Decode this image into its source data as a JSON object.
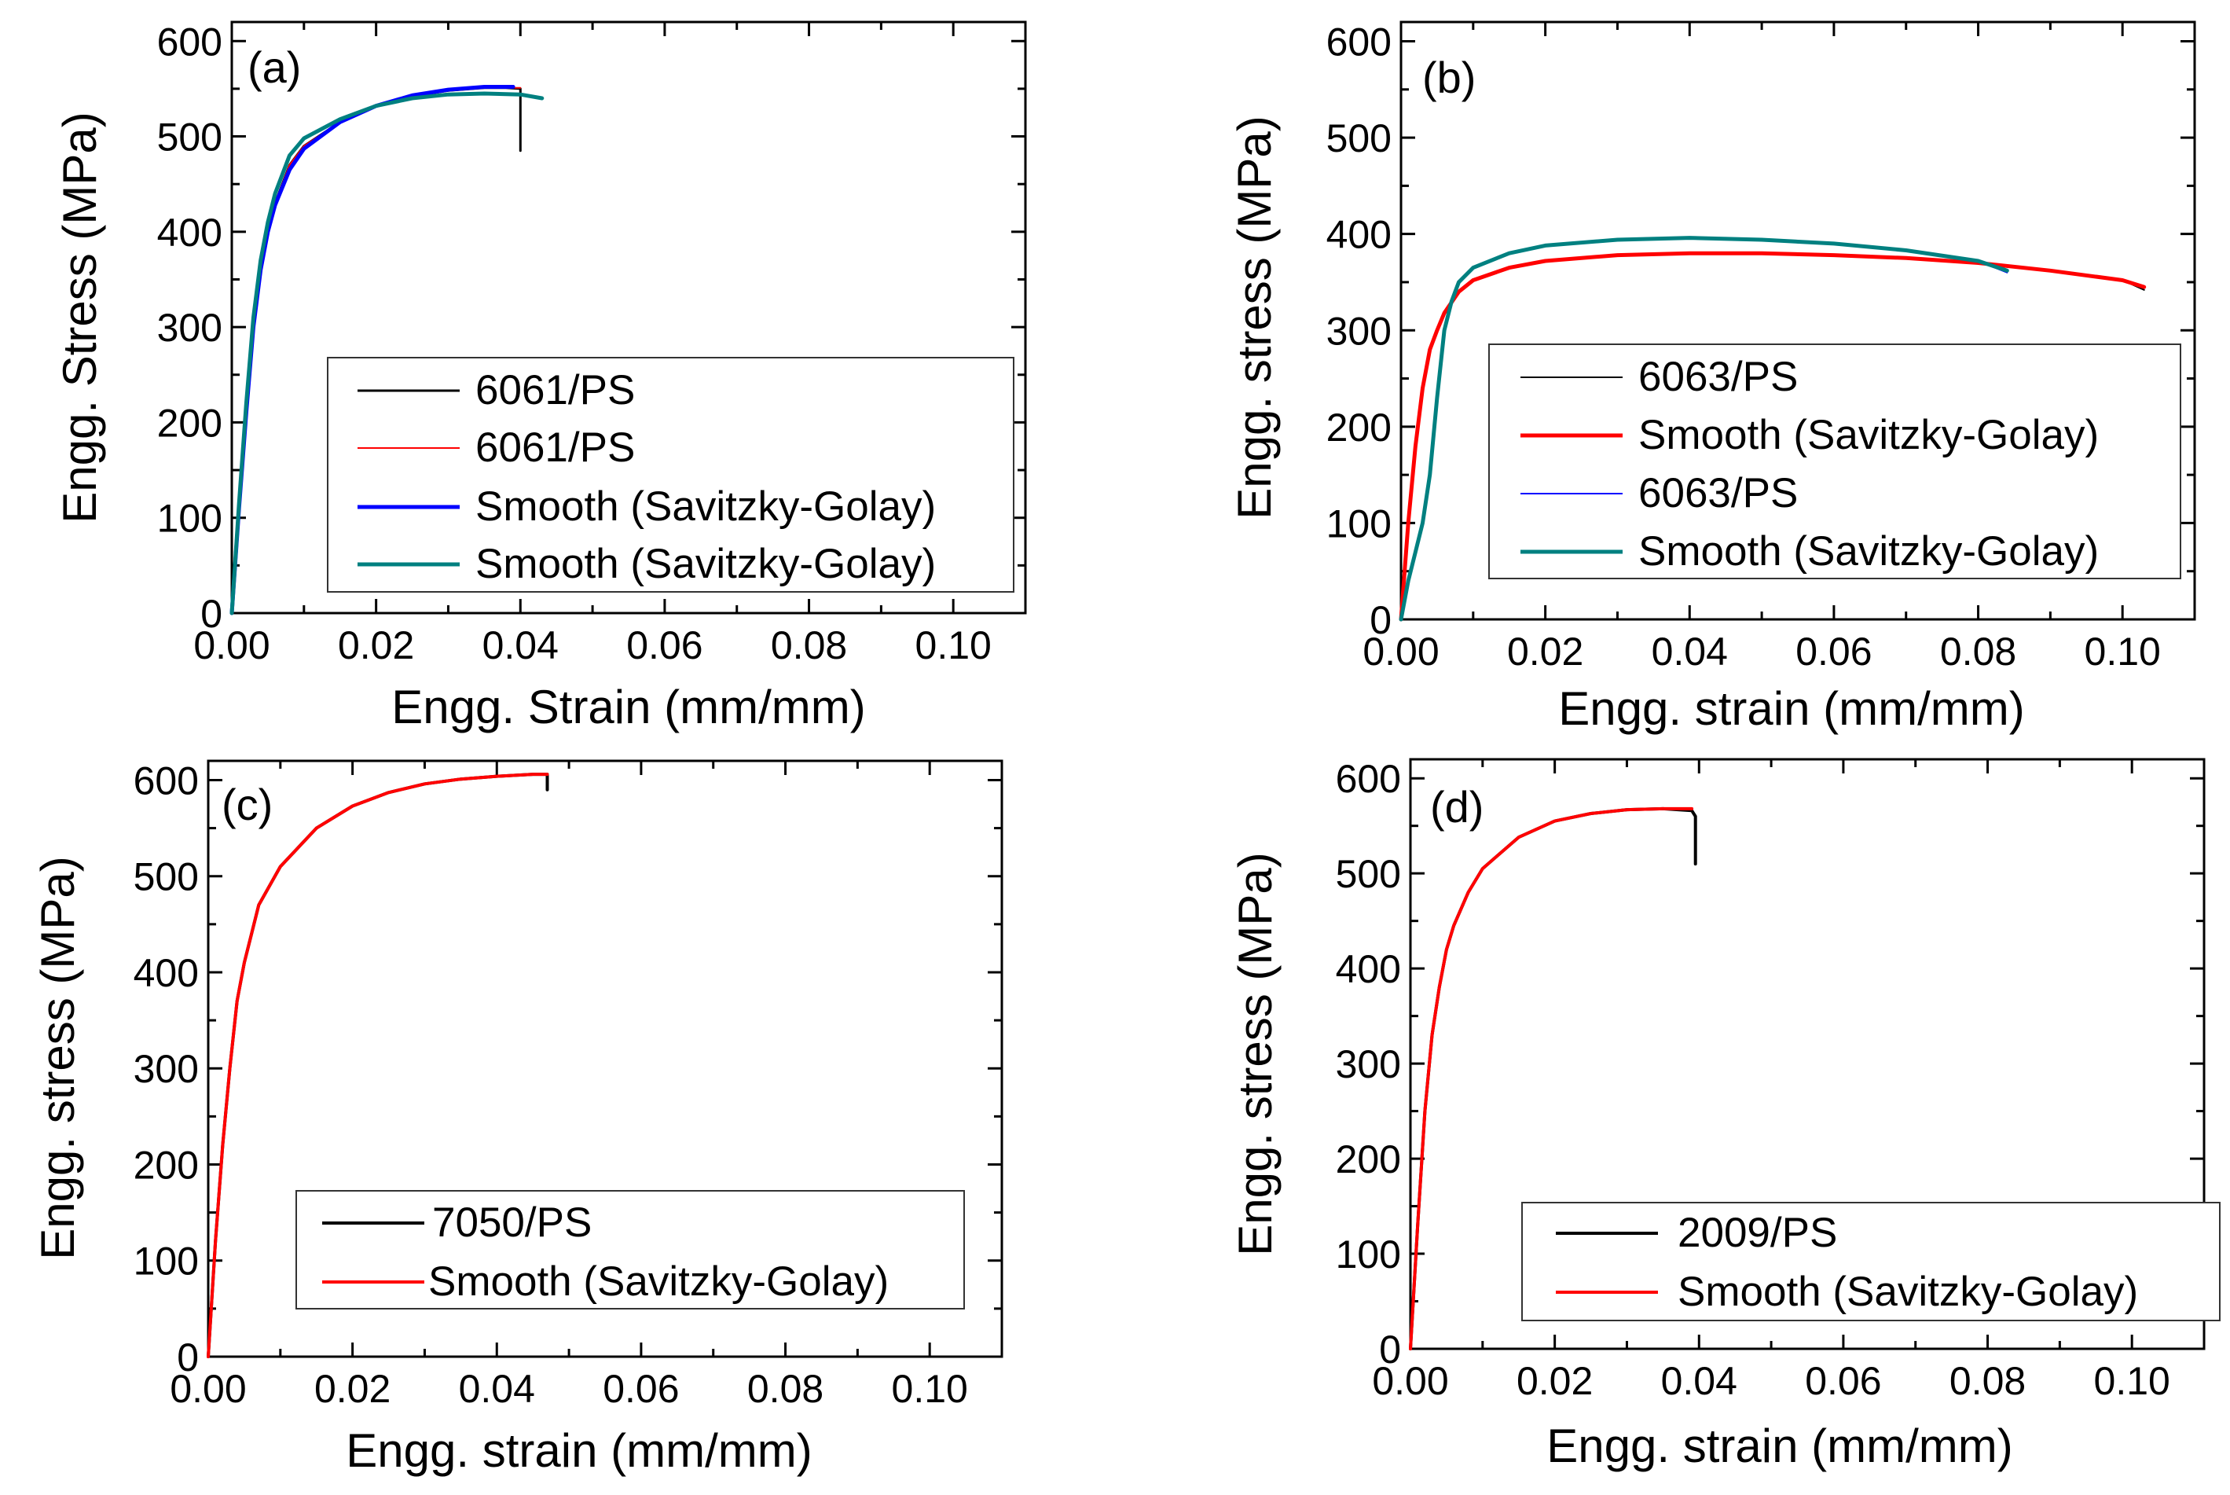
{
  "colors": {
    "black": "#000000",
    "red": "#ff0000",
    "blue": "#0000ff",
    "teal": "#008080"
  },
  "chart_data": [
    {
      "type": "line",
      "panel_label": "(a)",
      "xlabel": "Engg. Strain (mm/mm)",
      "ylabel": "Engg. Stress (MPa)",
      "xlim": [
        0,
        0.11
      ],
      "ylim": [
        0,
        620
      ],
      "xticks": [
        0,
        0.02,
        0.04,
        0.06,
        0.08,
        0.1
      ],
      "xtick_labels": [
        "0.00",
        "0.02",
        "0.04",
        "0.06",
        "0.08",
        "0.10"
      ],
      "yticks": [
        0,
        100,
        200,
        300,
        400,
        500,
        600
      ],
      "ytick_labels": [
        "0",
        "100",
        "200",
        "300",
        "400",
        "500",
        "600"
      ],
      "legend_position": "lower-right",
      "series": [
        {
          "name": "6061/PS",
          "color": "#000000",
          "width": 3,
          "x": [
            0,
            0.001,
            0.002,
            0.003,
            0.004,
            0.005,
            0.006,
            0.008,
            0.01,
            0.015,
            0.02,
            0.025,
            0.03,
            0.035,
            0.038,
            0.04,
            0.04
          ],
          "y": [
            0,
            110,
            210,
            300,
            360,
            400,
            430,
            470,
            490,
            515,
            532,
            542,
            548,
            551,
            551,
            550,
            485
          ]
        },
        {
          "name": "6061/PS",
          "color": "#ff0000",
          "width": 2,
          "x": [
            0,
            0.001,
            0.002,
            0.003,
            0.004,
            0.005,
            0.006,
            0.008,
            0.01,
            0.015,
            0.02,
            0.025,
            0.03,
            0.035,
            0.04
          ],
          "y": [
            0,
            110,
            210,
            300,
            360,
            400,
            430,
            470,
            490,
            515,
            532,
            542,
            548,
            551,
            551
          ]
        },
        {
          "name": "Smooth (Savitzky-Golay)",
          "color": "#0000ff",
          "width": 5,
          "x": [
            0,
            0.001,
            0.002,
            0.003,
            0.004,
            0.005,
            0.006,
            0.008,
            0.01,
            0.015,
            0.02,
            0.025,
            0.03,
            0.035,
            0.039
          ],
          "y": [
            0,
            110,
            210,
            300,
            360,
            400,
            428,
            465,
            487,
            515,
            532,
            543,
            549,
            552,
            552
          ]
        },
        {
          "name": "Smooth (Savitzky-Golay)",
          "color": "#008080",
          "width": 5,
          "x": [
            0,
            0.001,
            0.002,
            0.003,
            0.004,
            0.005,
            0.006,
            0.008,
            0.01,
            0.015,
            0.02,
            0.025,
            0.03,
            0.035,
            0.04,
            0.043
          ],
          "y": [
            0,
            115,
            220,
            310,
            370,
            410,
            440,
            480,
            498,
            518,
            532,
            540,
            544,
            545,
            544,
            540
          ]
        }
      ]
    },
    {
      "type": "line",
      "panel_label": "(b)",
      "xlabel": "Engg. strain (mm/mm)",
      "ylabel": "Engg. stress (MPa)",
      "xlim": [
        0,
        0.11
      ],
      "ylim": [
        0,
        620
      ],
      "xticks": [
        0,
        0.02,
        0.04,
        0.06,
        0.08,
        0.1
      ],
      "xtick_labels": [
        "0.00",
        "0.02",
        "0.04",
        "0.06",
        "0.08",
        "0.10"
      ],
      "yticks": [
        0,
        100,
        200,
        300,
        400,
        500,
        600
      ],
      "ytick_labels": [
        "0",
        "100",
        "200",
        "300",
        "400",
        "500",
        "600"
      ],
      "legend_position": "lower-right",
      "series": [
        {
          "name": "6063/PS",
          "color": "#000000",
          "width": 2,
          "x": [
            0,
            0.001,
            0.002,
            0.003,
            0.004,
            0.005,
            0.006,
            0.008,
            0.01,
            0.015,
            0.02,
            0.03,
            0.04,
            0.05,
            0.06,
            0.07,
            0.08,
            0.09,
            0.1,
            0.103
          ],
          "y": [
            0,
            100,
            180,
            240,
            280,
            300,
            318,
            340,
            352,
            365,
            372,
            378,
            380,
            380,
            378,
            375,
            370,
            362,
            352,
            342
          ]
        },
        {
          "name": "Smooth (Savitzky-Golay)",
          "color": "#ff0000",
          "width": 5,
          "x": [
            0,
            0.001,
            0.002,
            0.003,
            0.004,
            0.005,
            0.006,
            0.008,
            0.01,
            0.015,
            0.02,
            0.03,
            0.04,
            0.05,
            0.06,
            0.07,
            0.08,
            0.09,
            0.1,
            0.103
          ],
          "y": [
            0,
            100,
            180,
            240,
            280,
            300,
            318,
            340,
            352,
            365,
            372,
            378,
            380,
            380,
            378,
            375,
            370,
            362,
            352,
            345
          ]
        },
        {
          "name": "6063/PS",
          "color": "#0000ff",
          "width": 2,
          "x": [
            0,
            0.001,
            0.002,
            0.003,
            0.004,
            0.005,
            0.006,
            0.007,
            0.008,
            0.01,
            0.015,
            0.02,
            0.03,
            0.04,
            0.05,
            0.06,
            0.07,
            0.08,
            0.084
          ],
          "y": [
            0,
            40,
            70,
            100,
            150,
            230,
            300,
            330,
            350,
            365,
            380,
            388,
            394,
            396,
            394,
            390,
            383,
            372,
            360
          ]
        },
        {
          "name": "Smooth (Savitzky-Golay)",
          "color": "#008080",
          "width": 5,
          "x": [
            0,
            0.001,
            0.002,
            0.003,
            0.004,
            0.005,
            0.006,
            0.007,
            0.008,
            0.01,
            0.015,
            0.02,
            0.03,
            0.04,
            0.05,
            0.06,
            0.07,
            0.08,
            0.084
          ],
          "y": [
            0,
            40,
            70,
            100,
            150,
            230,
            300,
            330,
            350,
            365,
            380,
            388,
            394,
            396,
            394,
            390,
            383,
            372,
            362
          ]
        }
      ]
    },
    {
      "type": "line",
      "panel_label": "(c)",
      "xlabel": "Engg. strain (mm/mm)",
      "ylabel": "Engg. stress (MPa)",
      "xlim": [
        0,
        0.11
      ],
      "ylim": [
        0,
        620
      ],
      "xticks": [
        0,
        0.02,
        0.04,
        0.06,
        0.08,
        0.1
      ],
      "xtick_labels": [
        "0.00",
        "0.02",
        "0.04",
        "0.06",
        "0.08",
        "0.10"
      ],
      "yticks": [
        0,
        100,
        200,
        300,
        400,
        500,
        600
      ],
      "ytick_labels": [
        "0",
        "100",
        "200",
        "300",
        "400",
        "500",
        "600"
      ],
      "legend_position": "lower-right",
      "series": [
        {
          "name": "7050/PS",
          "color": "#000000",
          "width": 4,
          "x": [
            0,
            0.001,
            0.002,
            0.003,
            0.004,
            0.005,
            0.006,
            0.007,
            0.01,
            0.015,
            0.02,
            0.025,
            0.03,
            0.035,
            0.04,
            0.045,
            0.047,
            0.047
          ],
          "y": [
            0,
            120,
            220,
            300,
            370,
            410,
            440,
            470,
            510,
            550,
            573,
            587,
            596,
            601,
            604,
            606,
            606,
            590
          ]
        },
        {
          "name": "Smooth (Savitzky-Golay)",
          "color": "#ff0000",
          "width": 4,
          "x": [
            0,
            0.001,
            0.002,
            0.003,
            0.004,
            0.005,
            0.006,
            0.007,
            0.01,
            0.015,
            0.02,
            0.025,
            0.03,
            0.035,
            0.04,
            0.045,
            0.047
          ],
          "y": [
            0,
            120,
            220,
            300,
            370,
            410,
            440,
            470,
            510,
            550,
            573,
            587,
            596,
            601,
            604,
            606,
            606
          ]
        }
      ]
    },
    {
      "type": "line",
      "panel_label": "(d)",
      "xlabel": "Engg. strain (mm/mm)",
      "ylabel": "Engg. stress (MPa)",
      "xlim": [
        0,
        0.11
      ],
      "ylim": [
        0,
        620
      ],
      "xticks": [
        0,
        0.02,
        0.04,
        0.06,
        0.08,
        0.1
      ],
      "xtick_labels": [
        "0.00",
        "0.02",
        "0.04",
        "0.06",
        "0.08",
        "0.10"
      ],
      "yticks": [
        0,
        100,
        200,
        300,
        400,
        500,
        600
      ],
      "ytick_labels": [
        "0",
        "100",
        "200",
        "300",
        "400",
        "500",
        "600"
      ],
      "legend_position": "lower-right",
      "series": [
        {
          "name": "2009/PS",
          "color": "#000000",
          "width": 4,
          "x": [
            0,
            0.001,
            0.002,
            0.003,
            0.004,
            0.005,
            0.006,
            0.008,
            0.01,
            0.015,
            0.02,
            0.025,
            0.03,
            0.035,
            0.039,
            0.0395,
            0.0395
          ],
          "y": [
            0,
            130,
            250,
            330,
            380,
            420,
            445,
            480,
            505,
            538,
            555,
            563,
            567,
            568,
            566,
            560,
            510
          ]
        },
        {
          "name": "Smooth (Savitzky-Golay)",
          "color": "#ff0000",
          "width": 4,
          "x": [
            0,
            0.001,
            0.002,
            0.003,
            0.004,
            0.005,
            0.006,
            0.008,
            0.01,
            0.015,
            0.02,
            0.025,
            0.03,
            0.035,
            0.039
          ],
          "y": [
            0,
            130,
            250,
            330,
            380,
            420,
            445,
            480,
            505,
            538,
            555,
            563,
            567,
            568,
            568
          ]
        }
      ]
    }
  ]
}
